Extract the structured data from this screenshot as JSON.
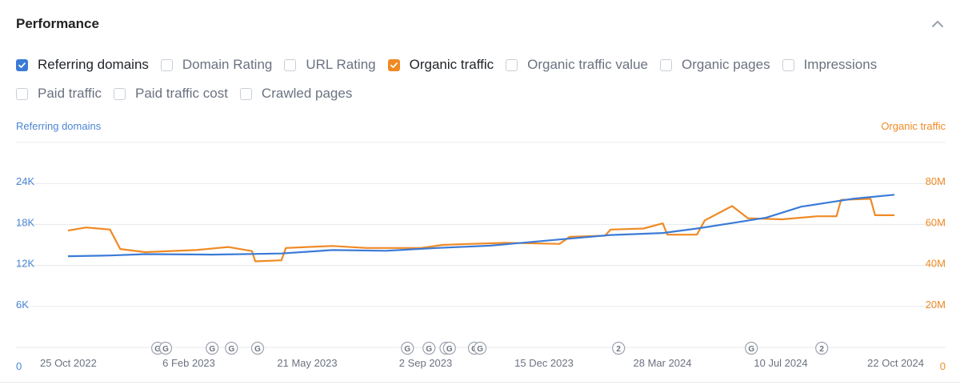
{
  "panel": {
    "title": "Performance",
    "collapse_icon": "chevron-up-icon"
  },
  "metrics": [
    {
      "label": "Referring domains",
      "checked": true,
      "color": "#3b7bd6"
    },
    {
      "label": "Domain Rating",
      "checked": false
    },
    {
      "label": "URL Rating",
      "checked": false
    },
    {
      "label": "Organic traffic",
      "checked": true,
      "color": "#ef8a24"
    },
    {
      "label": "Organic traffic value",
      "checked": false
    },
    {
      "label": "Organic pages",
      "checked": false
    },
    {
      "label": "Impressions",
      "checked": false
    },
    {
      "label": "Paid traffic",
      "checked": false
    },
    {
      "label": "Paid traffic cost",
      "checked": false
    },
    {
      "label": "Crawled pages",
      "checked": false
    }
  ],
  "chart_data": {
    "type": "line",
    "left_axis": {
      "title": "Referring domains",
      "ticks": [
        "0",
        "6K",
        "12K",
        "18K",
        "24K"
      ],
      "tick_values": [
        0,
        6000,
        12000,
        18000,
        24000
      ],
      "max": 30000,
      "color": "#4a86d4"
    },
    "right_axis": {
      "title": "Organic traffic",
      "ticks": [
        "0",
        "20M",
        "40M",
        "60M",
        "80M"
      ],
      "tick_values": [
        0,
        20000000,
        40000000,
        60000000,
        80000000
      ],
      "max": 100000000,
      "color": "#ef8a24"
    },
    "x_labels": [
      "25 Oct 2022",
      "6 Feb 2023",
      "21 May 2023",
      "2 Sep 2023",
      "15 Dec 2023",
      "28 Mar 2024",
      "10 Jul 2024",
      "22 Oct 2024"
    ],
    "x_range": [
      "2022-10-25",
      "2024-10-22"
    ],
    "grid": true,
    "series": [
      {
        "name": "Referring domains",
        "axis": "left",
        "color": "#3b7bd6",
        "points": [
          [
            "2022-10-25",
            13350
          ],
          [
            "2022-12-01",
            13450
          ],
          [
            "2023-01-01",
            13650
          ],
          [
            "2023-03-01",
            13580
          ],
          [
            "2023-05-01",
            13750
          ],
          [
            "2023-06-15",
            14250
          ],
          [
            "2023-08-01",
            14150
          ],
          [
            "2023-09-15",
            14550
          ],
          [
            "2023-11-01",
            14900
          ],
          [
            "2024-01-01",
            15800
          ],
          [
            "2024-02-15",
            16450
          ],
          [
            "2024-04-01",
            16750
          ],
          [
            "2024-05-01",
            17400
          ],
          [
            "2024-06-01",
            18200
          ],
          [
            "2024-07-01",
            19000
          ],
          [
            "2024-08-01",
            20600
          ],
          [
            "2024-09-15",
            21750
          ],
          [
            "2024-10-22",
            22350
          ]
        ]
      },
      {
        "name": "Organic traffic",
        "axis": "right",
        "color": "#ef8a24",
        "points": [
          [
            "2022-10-25",
            57000000
          ],
          [
            "2022-11-10",
            58500000
          ],
          [
            "2022-12-01",
            57500000
          ],
          [
            "2022-12-10",
            48000000
          ],
          [
            "2023-01-01",
            46500000
          ],
          [
            "2023-02-15",
            47500000
          ],
          [
            "2023-03-15",
            49000000
          ],
          [
            "2023-04-05",
            47000000
          ],
          [
            "2023-04-08",
            42000000
          ],
          [
            "2023-05-01",
            42500000
          ],
          [
            "2023-05-05",
            48500000
          ],
          [
            "2023-06-15",
            49500000
          ],
          [
            "2023-07-15",
            48500000
          ],
          [
            "2023-09-01",
            48500000
          ],
          [
            "2023-09-20",
            50000000
          ],
          [
            "2023-10-15",
            50500000
          ],
          [
            "2023-11-15",
            51000000
          ],
          [
            "2024-01-01",
            50500000
          ],
          [
            "2024-01-10",
            54000000
          ],
          [
            "2024-02-10",
            54500000
          ],
          [
            "2024-02-15",
            57500000
          ],
          [
            "2024-03-15",
            58000000
          ],
          [
            "2024-04-01",
            60500000
          ],
          [
            "2024-04-05",
            55000000
          ],
          [
            "2024-05-01",
            55000000
          ],
          [
            "2024-05-08",
            62000000
          ],
          [
            "2024-06-01",
            69000000
          ],
          [
            "2024-06-15",
            63000000
          ],
          [
            "2024-07-15",
            62500000
          ],
          [
            "2024-08-15",
            64000000
          ],
          [
            "2024-09-01",
            64000000
          ],
          [
            "2024-09-05",
            72000000
          ],
          [
            "2024-10-01",
            72500000
          ],
          [
            "2024-10-05",
            64500000
          ],
          [
            "2024-10-22",
            64500000
          ]
        ]
      }
    ],
    "event_markers": [
      {
        "date": "2023-01-12",
        "label": "G"
      },
      {
        "date": "2023-01-19",
        "label": "G"
      },
      {
        "date": "2023-03-01",
        "label": "G"
      },
      {
        "date": "2023-03-18",
        "label": "G"
      },
      {
        "date": "2023-04-10",
        "label": "G"
      },
      {
        "date": "2023-08-20",
        "label": "G"
      },
      {
        "date": "2023-09-08",
        "label": "G"
      },
      {
        "date": "2023-09-23",
        "label": "G"
      },
      {
        "date": "2023-09-26",
        "label": "G"
      },
      {
        "date": "2023-10-18",
        "label": "G"
      },
      {
        "date": "2023-10-23",
        "label": "G"
      },
      {
        "date": "2024-02-22",
        "label": "2"
      },
      {
        "date": "2024-06-18",
        "label": "G"
      },
      {
        "date": "2024-08-19",
        "label": "2"
      }
    ]
  }
}
